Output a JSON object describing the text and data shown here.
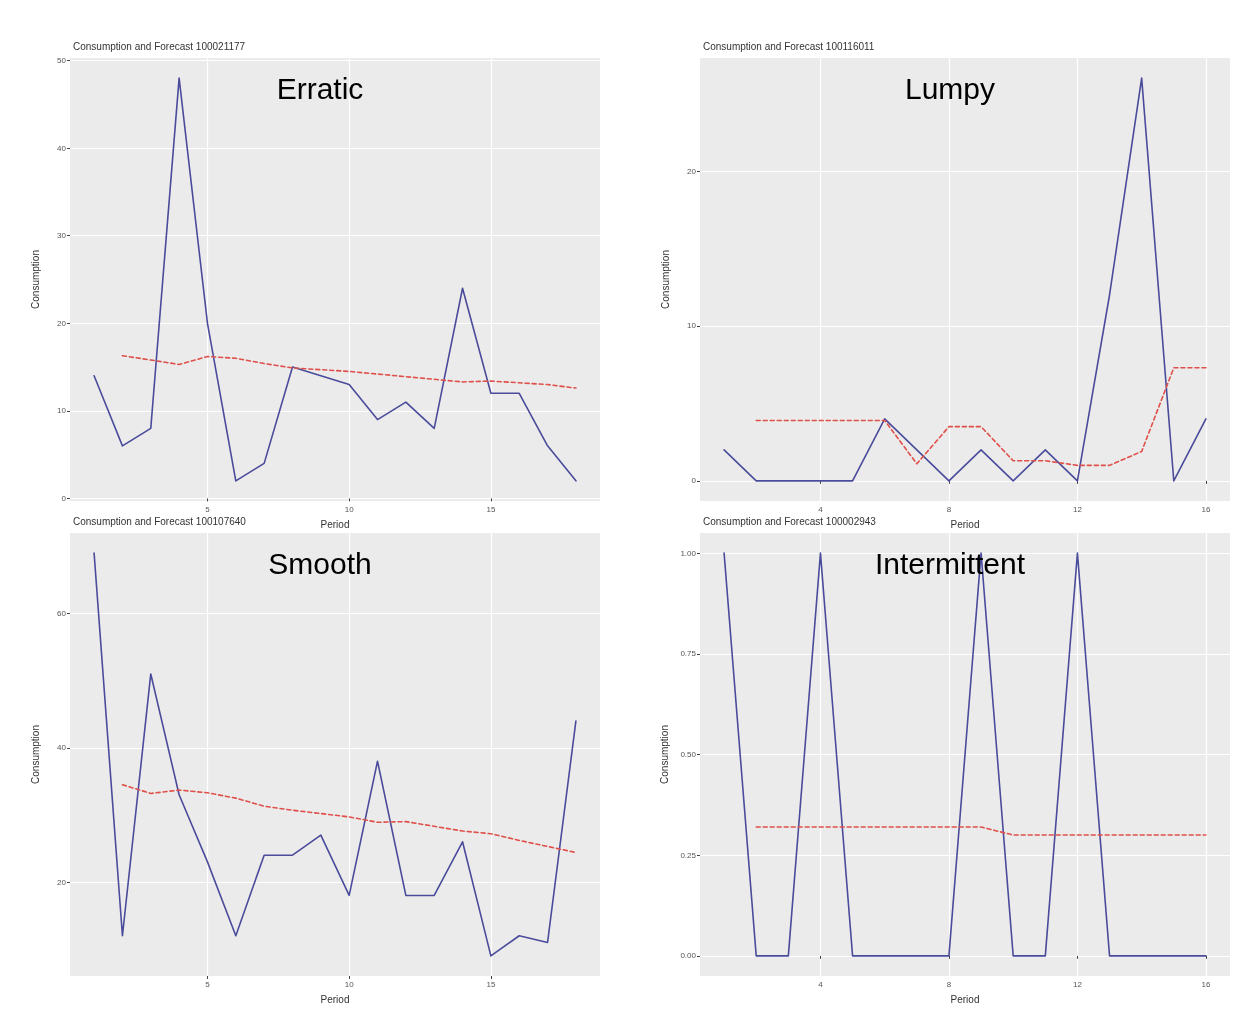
{
  "chart_data": [
    {
      "type": "line",
      "title": "Consumption and Forecast 100021177",
      "xlabel": "Period",
      "ylabel": "Consumption",
      "annotations": [
        "Erratic"
      ],
      "grid": true,
      "marker": "none",
      "xlim": [
        0.15,
        18.85
      ],
      "xticks": [
        5,
        10,
        15
      ],
      "ylim": [
        -0.3,
        50.3
      ],
      "yticks": [
        0,
        10,
        20,
        30,
        40,
        50
      ],
      "series": [
        {
          "color": "#4b4b9b",
          "line_style": "solid",
          "x": [
            1,
            2,
            3,
            4,
            5,
            6,
            7,
            8,
            9,
            10,
            11,
            12,
            13,
            14,
            15,
            16,
            17,
            18
          ],
          "values": [
            14,
            6,
            8,
            48,
            20,
            2,
            4,
            15,
            14,
            13,
            9,
            11,
            8,
            24,
            12,
            12,
            6,
            2
          ]
        },
        {
          "color": "#e0504a",
          "line_style": "dashed",
          "x": [
            2,
            3,
            4,
            5,
            6,
            7,
            8,
            9,
            10,
            11,
            12,
            13,
            14,
            15,
            16,
            17,
            18
          ],
          "values": [
            16.3,
            15.8,
            15.3,
            16.2,
            16.0,
            15.4,
            14.9,
            14.7,
            14.5,
            14.2,
            13.9,
            13.6,
            13.3,
            13.4,
            13.2,
            13.0,
            12.6
          ]
        }
      ]
    },
    {
      "type": "line",
      "title": "Consumption and Forecast 100116011",
      "xlabel": "Period",
      "ylabel": "Consumption",
      "annotations": [
        "Lumpy"
      ],
      "grid": true,
      "marker": "none",
      "xlim": [
        0.25,
        16.75
      ],
      "xticks": [
        4,
        8,
        12,
        16
      ],
      "ylim": [
        -1.3,
        27.3
      ],
      "yticks": [
        0,
        10,
        20
      ],
      "series": [
        {
          "color": "#4b4b9b",
          "line_style": "solid",
          "x": [
            1,
            2,
            3,
            4,
            5,
            6,
            7,
            8,
            9,
            10,
            11,
            12,
            13,
            14,
            15,
            16
          ],
          "values": [
            2,
            0,
            0,
            0,
            0,
            4,
            2,
            0,
            2,
            0,
            2,
            0,
            12,
            26,
            0,
            4
          ]
        },
        {
          "color": "#e0504a",
          "line_style": "dashed",
          "x": [
            2,
            3,
            4,
            5,
            6,
            7,
            8,
            9,
            10,
            11,
            12,
            13,
            14,
            15,
            16
          ],
          "values": [
            3.9,
            3.9,
            3.9,
            3.9,
            3.9,
            1.1,
            3.5,
            3.5,
            1.3,
            1.3,
            1.0,
            1.0,
            1.9,
            7.3,
            7.3
          ]
        }
      ]
    },
    {
      "type": "line",
      "title": "Consumption and Forecast 100107640",
      "xlabel": "Period",
      "ylabel": "Consumption",
      "annotations": [
        "Smooth"
      ],
      "grid": true,
      "marker": "none",
      "xlim": [
        0.15,
        18.85
      ],
      "xticks": [
        5,
        10,
        15
      ],
      "ylim": [
        6,
        72
      ],
      "yticks": [
        20,
        40,
        60
      ],
      "series": [
        {
          "color": "#4b4b9b",
          "line_style": "solid",
          "x": [
            1,
            2,
            3,
            4,
            5,
            6,
            7,
            8,
            9,
            10,
            11,
            12,
            13,
            14,
            15,
            16,
            17,
            18
          ],
          "values": [
            69,
            12,
            51,
            33,
            23,
            12,
            24,
            24,
            27,
            18,
            38,
            18,
            18,
            26,
            9,
            12,
            11,
            44
          ]
        },
        {
          "color": "#e0504a",
          "line_style": "dashed",
          "x": [
            2,
            3,
            4,
            5,
            6,
            7,
            8,
            9,
            10,
            11,
            12,
            13,
            14,
            15,
            16,
            17,
            18
          ],
          "values": [
            34.5,
            33.2,
            33.7,
            33.3,
            32.5,
            31.3,
            30.7,
            30.2,
            29.7,
            28.9,
            29.0,
            28.3,
            27.6,
            27.2,
            26.2,
            25.3,
            24.4
          ]
        }
      ]
    },
    {
      "type": "line",
      "title": "Consumption and Forecast 100002943",
      "xlabel": "Period",
      "ylabel": "Consumption",
      "annotations": [
        "Intermittent"
      ],
      "grid": true,
      "marker": "none",
      "xlim": [
        0.25,
        16.75
      ],
      "xticks": [
        4,
        8,
        12,
        16
      ],
      "ylim": [
        -0.05,
        1.05
      ],
      "yticks": [
        {
          "value": 0,
          "label": "0.00"
        },
        {
          "value": 0.25,
          "label": "0.25"
        },
        {
          "value": 0.5,
          "label": "0.50"
        },
        {
          "value": 0.75,
          "label": "0.75"
        },
        {
          "value": 1,
          "label": "1.00"
        }
      ],
      "series": [
        {
          "color": "#4b4b9b",
          "line_style": "solid",
          "x": [
            1,
            2,
            3,
            4,
            5,
            6,
            7,
            8,
            9,
            10,
            11,
            12,
            13,
            14,
            15,
            16
          ],
          "values": [
            1,
            0,
            0,
            1,
            0,
            0,
            0,
            0,
            1,
            0,
            0,
            1,
            0,
            0,
            0,
            0
          ]
        },
        {
          "color": "#e0504a",
          "line_style": "dashed",
          "x": [
            2,
            3,
            4,
            5,
            6,
            7,
            8,
            9,
            10,
            11,
            12,
            13,
            14,
            15,
            16
          ],
          "values": [
            0.32,
            0.32,
            0.32,
            0.32,
            0.32,
            0.32,
            0.32,
            0.32,
            0.3,
            0.3,
            0.3,
            0.3,
            0.3,
            0.3,
            0.3
          ]
        }
      ]
    }
  ]
}
